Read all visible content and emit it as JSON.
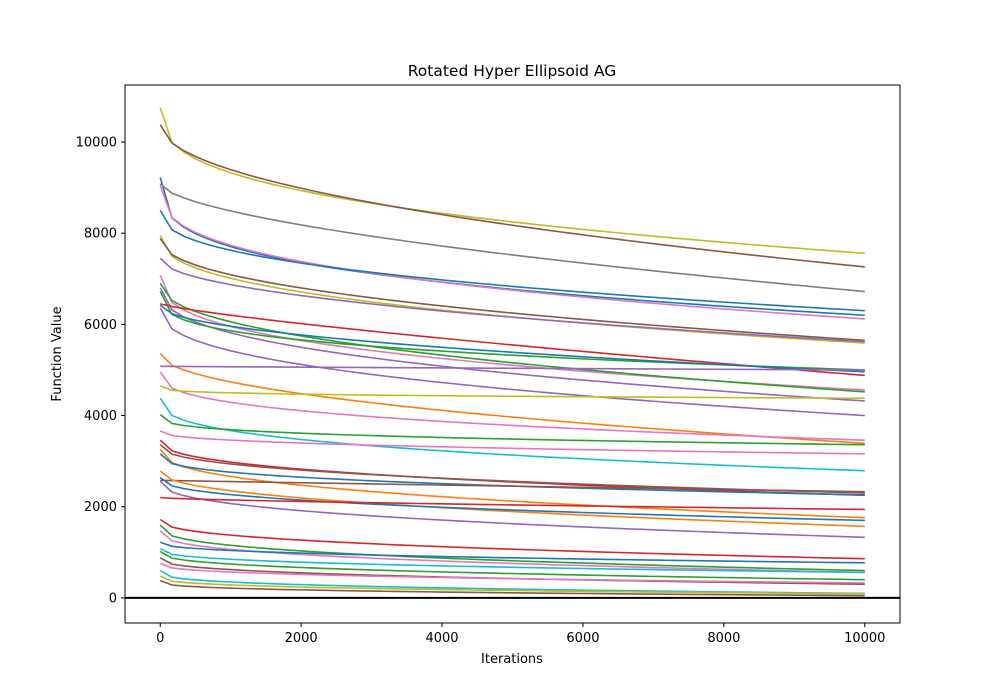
{
  "chart_data": {
    "type": "line",
    "title": "Rotated Hyper Ellipsoid AG",
    "xlabel": "Iterations",
    "ylabel": "Function Value",
    "xlim": [
      -500,
      10500
    ],
    "ylim": [
      -550,
      11250
    ],
    "xticks": [
      0,
      2000,
      4000,
      6000,
      8000,
      10000
    ],
    "yticks": [
      0,
      2000,
      4000,
      6000,
      8000,
      10000
    ],
    "grid": false,
    "legend": "none",
    "reference_line": {
      "y": 0,
      "color": "#000000"
    },
    "series": [
      {
        "color": "#bcbd22",
        "start": 10750,
        "end": 7560,
        "shape": 0.35
      },
      {
        "color": "#8c564b",
        "start": 10380,
        "end": 7260,
        "shape": 0.5
      },
      {
        "color": "#1f77b4",
        "start": 9220,
        "end": 6200,
        "shape": 0.3
      },
      {
        "color": "#7f7f7f",
        "start": 9080,
        "end": 6720,
        "shape": 0.6
      },
      {
        "color": "#e377c2",
        "start": 9040,
        "end": 6120,
        "shape": 0.35
      },
      {
        "color": "#1f77b4",
        "start": 8500,
        "end": 6300,
        "shape": 0.4
      },
      {
        "color": "#bcbd22",
        "start": 7950,
        "end": 5590,
        "shape": 0.4
      },
      {
        "color": "#8c564b",
        "start": 7880,
        "end": 5650,
        "shape": 0.45
      },
      {
        "color": "#9467bd",
        "start": 7450,
        "end": 5620,
        "shape": 0.5
      },
      {
        "color": "#e377c2",
        "start": 7080,
        "end": 4560,
        "shape": 0.35
      },
      {
        "color": "#2ca02c",
        "start": 6900,
        "end": 4520,
        "shape": 0.45
      },
      {
        "color": "#9467bd",
        "start": 6800,
        "end": 4320,
        "shape": 0.4
      },
      {
        "color": "#2ca02c",
        "start": 6720,
        "end": 5000,
        "shape": 0.3
      },
      {
        "color": "#d62728",
        "start": 6450,
        "end": 4880,
        "shape": 0.8
      },
      {
        "color": "#1f77b4",
        "start": 6420,
        "end": 4960,
        "shape": 0.5
      },
      {
        "color": "#9467bd",
        "start": 6360,
        "end": 4000,
        "shape": 0.4
      },
      {
        "color": "#ff7f0e",
        "start": 5360,
        "end": 3390,
        "shape": 0.5
      },
      {
        "color": "#9467bd",
        "start": 5080,
        "end": 5000,
        "shape": 0.9
      },
      {
        "color": "#e377c2",
        "start": 4960,
        "end": 3460,
        "shape": 0.35
      },
      {
        "color": "#bcbd22",
        "start": 4650,
        "end": 4380,
        "shape": 0.25
      },
      {
        "color": "#17becf",
        "start": 4380,
        "end": 2790,
        "shape": 0.35
      },
      {
        "color": "#2ca02c",
        "start": 4020,
        "end": 3360,
        "shape": 0.3
      },
      {
        "color": "#e377c2",
        "start": 3660,
        "end": 3160,
        "shape": 0.4
      },
      {
        "color": "#d62728",
        "start": 3460,
        "end": 2250,
        "shape": 0.4
      },
      {
        "color": "#8c564b",
        "start": 3360,
        "end": 2300,
        "shape": 0.4
      },
      {
        "color": "#ff7f0e",
        "start": 3260,
        "end": 1760,
        "shape": 0.4
      },
      {
        "color": "#1f77b4",
        "start": 3160,
        "end": 2260,
        "shape": 0.35
      },
      {
        "color": "#8c564b",
        "start": 2580,
        "end": 2330,
        "shape": 0.95
      },
      {
        "color": "#ff7f0e",
        "start": 2780,
        "end": 1570,
        "shape": 0.45
      },
      {
        "color": "#1f77b4",
        "start": 2640,
        "end": 1700,
        "shape": 0.4
      },
      {
        "color": "#9467bd",
        "start": 2560,
        "end": 1330,
        "shape": 0.4
      },
      {
        "color": "#d62728",
        "start": 2200,
        "end": 1940,
        "shape": 0.7
      },
      {
        "color": "#d62728",
        "start": 1720,
        "end": 860,
        "shape": 0.4
      },
      {
        "color": "#2ca02c",
        "start": 1600,
        "end": 600,
        "shape": 0.35
      },
      {
        "color": "#e377c2",
        "start": 1470,
        "end": 560,
        "shape": 0.35
      },
      {
        "color": "#1f77b4",
        "start": 1220,
        "end": 770,
        "shape": 0.4
      },
      {
        "color": "#17becf",
        "start": 1080,
        "end": 560,
        "shape": 0.35
      },
      {
        "color": "#2ca02c",
        "start": 1020,
        "end": 400,
        "shape": 0.35
      },
      {
        "color": "#8c564b",
        "start": 880,
        "end": 300,
        "shape": 0.35
      },
      {
        "color": "#e377c2",
        "start": 760,
        "end": 330,
        "shape": 0.35
      },
      {
        "color": "#17becf",
        "start": 600,
        "end": 100,
        "shape": 0.3
      },
      {
        "color": "#bcbd22",
        "start": 480,
        "end": 90,
        "shape": 0.3
      },
      {
        "color": "#8c564b",
        "start": 380,
        "end": 50,
        "shape": 0.3
      }
    ]
  }
}
